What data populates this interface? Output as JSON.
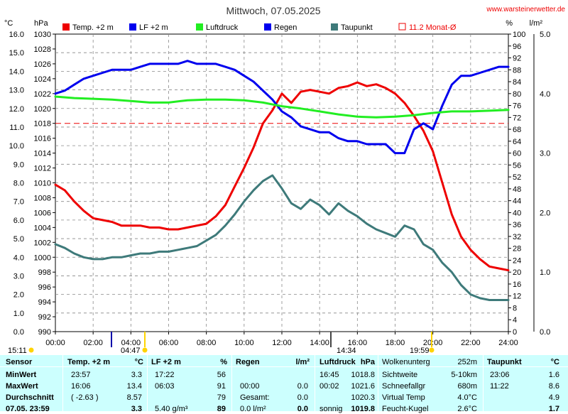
{
  "title": "Mittwoch, 07.05.2025",
  "site": "www.warsteinerwetter.de",
  "axis_units": {
    "temp": "°C",
    "pressure": "hPa",
    "humidity": "%",
    "rain": "l/m²"
  },
  "legend": [
    {
      "label": "Temp. +2 m",
      "color": "#ee0000",
      "style": "box"
    },
    {
      "label": "LF +2 m",
      "color": "#0000ee",
      "style": "box"
    },
    {
      "label": "Luftdruck",
      "color": "#22ee22",
      "style": "box"
    },
    {
      "label": "Regen",
      "color": "#0000ee",
      "style": "box"
    },
    {
      "label": "Taupunkt",
      "color": "#3e7a7a",
      "style": "box"
    },
    {
      "label": "11.2 Monat-Ø",
      "color": "#ee0000",
      "style": "outline"
    }
  ],
  "sun_events": {
    "sunrise": "04:47",
    "sunset": "19:59",
    "noon": "14:34",
    "left": "15:11"
  },
  "chart_data": {
    "type": "line",
    "x_range_hours": [
      0,
      24
    ],
    "x_ticks": [
      "00:00",
      "02:00",
      "04:00",
      "06:00",
      "08:00",
      "10:00",
      "12:00",
      "14:00",
      "16:00",
      "18:00",
      "20:00",
      "22:00",
      "24:00"
    ],
    "temp_ticks": [
      "0.0",
      "1.0",
      "2.0",
      "3.0",
      "4.0",
      "5.0",
      "6.0",
      "7.0",
      "8.0",
      "9.0",
      "10.0",
      "11.0",
      "12.0",
      "13.0",
      "14.0",
      "15.0",
      "16.0"
    ],
    "pressure_ticks": [
      "990",
      "992",
      "994",
      "996",
      "998",
      "1000",
      "1002",
      "1004",
      "1006",
      "1008",
      "1010",
      "1012",
      "1014",
      "1016",
      "1018",
      "1020",
      "1022",
      "1024",
      "1026",
      "1028",
      "1030"
    ],
    "humidity_ticks": [
      "0",
      "4",
      "8",
      "12",
      "16",
      "20",
      "24",
      "28",
      "32",
      "36",
      "40",
      "44",
      "48",
      "52",
      "56",
      "60",
      "64",
      "68",
      "72",
      "76",
      "80",
      "84",
      "88",
      "92",
      "96",
      "100"
    ],
    "rain_ticks": [
      "0.0",
      "1.0",
      "2.0",
      "3.0",
      "4.0",
      "5.0"
    ],
    "temp_range": [
      0,
      16
    ],
    "pressure_range": [
      990,
      1030
    ],
    "humidity_range": [
      0,
      100
    ],
    "rain_range": [
      0,
      5
    ],
    "monthly_average_temp": 11.2,
    "grid": true,
    "series": [
      {
        "name": "Temp. +2 m",
        "axis": "temp",
        "color": "#ee0000",
        "x": [
          0,
          0.5,
          1,
          1.5,
          2,
          2.5,
          3,
          3.5,
          4,
          4.5,
          5,
          5.5,
          6,
          6.5,
          7,
          7.5,
          8,
          8.5,
          9,
          9.5,
          10,
          10.5,
          11,
          11.5,
          12,
          12.5,
          13,
          13.5,
          14,
          14.5,
          15,
          15.5,
          16,
          16.5,
          17,
          17.5,
          18,
          18.5,
          19,
          19.5,
          20,
          20.5,
          21,
          21.5,
          22,
          22.5,
          23,
          23.5,
          24
        ],
        "y": [
          7.9,
          7.6,
          7.0,
          6.5,
          6.1,
          6.0,
          5.9,
          5.7,
          5.7,
          5.7,
          5.6,
          5.6,
          5.5,
          5.5,
          5.6,
          5.7,
          5.8,
          6.2,
          6.8,
          7.8,
          8.8,
          9.9,
          11.2,
          11.9,
          12.8,
          12.3,
          12.9,
          13.0,
          12.9,
          12.8,
          13.1,
          13.2,
          13.4,
          13.2,
          13.3,
          13.1,
          12.8,
          12.3,
          11.6,
          10.8,
          9.7,
          8.0,
          6.3,
          5.1,
          4.4,
          3.9,
          3.5,
          3.4,
          3.3
        ]
      },
      {
        "name": "LF +2 m",
        "axis": "humidity",
        "color": "#0000ee",
        "x": [
          0,
          0.5,
          1,
          1.5,
          2,
          2.5,
          3,
          3.5,
          4,
          4.5,
          5,
          5.5,
          6,
          6.5,
          7,
          7.5,
          8,
          8.5,
          9,
          9.5,
          10,
          10.5,
          11,
          11.5,
          12,
          12.5,
          13,
          13.5,
          14,
          14.5,
          15,
          15.5,
          16,
          16.5,
          17,
          17.5,
          18,
          18.5,
          19,
          19.5,
          20,
          20.5,
          21,
          21.5,
          22,
          22.5,
          23,
          23.5,
          24
        ],
        "y": [
          80,
          81,
          83,
          85,
          86,
          87,
          88,
          88,
          88,
          89,
          90,
          90,
          90,
          90,
          91,
          90,
          90,
          90,
          89,
          88,
          86,
          84,
          81,
          78,
          74,
          72,
          69,
          68,
          67,
          67,
          65,
          64,
          64,
          63,
          63,
          63,
          60,
          60,
          68,
          70,
          68,
          76,
          83,
          86,
          86,
          87,
          88,
          89,
          89
        ]
      },
      {
        "name": "Luftdruck",
        "axis": "pressure",
        "color": "#22ee22",
        "x": [
          0,
          1,
          2,
          3,
          4,
          5,
          6,
          7,
          8,
          9,
          10,
          11,
          12,
          13,
          14,
          15,
          16,
          17,
          18,
          19,
          20,
          21,
          22,
          23,
          24
        ],
        "y": [
          1021.6,
          1021.4,
          1021.3,
          1021.2,
          1021.0,
          1020.8,
          1020.8,
          1021.1,
          1021.2,
          1021.2,
          1021.1,
          1020.8,
          1020.3,
          1020.0,
          1019.6,
          1019.2,
          1018.9,
          1018.8,
          1018.9,
          1019.1,
          1019.4,
          1019.6,
          1019.6,
          1019.7,
          1019.8
        ]
      },
      {
        "name": "Taupunkt",
        "axis": "temp",
        "color": "#3e7a7a",
        "x": [
          0,
          0.5,
          1,
          1.5,
          2,
          2.5,
          3,
          3.5,
          4,
          4.5,
          5,
          5.5,
          6,
          6.5,
          7,
          7.5,
          8,
          8.5,
          9,
          9.5,
          10,
          10.5,
          11,
          11.5,
          12,
          12.5,
          13,
          13.5,
          14,
          14.5,
          15,
          15.5,
          16,
          16.5,
          17,
          17.5,
          18,
          18.5,
          19,
          19.5,
          20,
          20.5,
          21,
          21.5,
          22,
          22.5,
          23,
          23.5,
          24
        ],
        "y": [
          4.7,
          4.5,
          4.2,
          4.0,
          3.9,
          3.9,
          4.0,
          4.0,
          4.1,
          4.2,
          4.2,
          4.3,
          4.3,
          4.4,
          4.5,
          4.6,
          4.9,
          5.2,
          5.7,
          6.3,
          7.0,
          7.6,
          8.1,
          8.4,
          7.7,
          6.9,
          6.6,
          7.1,
          6.8,
          6.3,
          6.9,
          6.5,
          6.2,
          5.8,
          5.5,
          5.3,
          5.1,
          5.7,
          5.5,
          4.7,
          4.4,
          3.7,
          3.2,
          2.5,
          2.0,
          1.8,
          1.7,
          1.7,
          1.7
        ]
      }
    ]
  },
  "table": {
    "headers": {
      "sensor": "Sensor",
      "temp": "Temp. +2 m",
      "temp_unit": "°C",
      "lf": "LF +2 m",
      "lf_unit": "%",
      "regen": "Regen",
      "regen_unit": "l/m²",
      "luftdruck": "Luftdruck",
      "luftdruck_unit": "hPa",
      "extra_label": "Wolkenunterg",
      "extra_value": "252m",
      "taupunkt": "Taupunkt",
      "taupunkt_unit": "°C"
    },
    "rows": [
      {
        "label": "MinWert",
        "temp_time": "23:57",
        "temp_val": "3.3",
        "lf_time": "17:22",
        "lf_val": "56",
        "regen_time": "",
        "regen_val": "",
        "lp_time": "16:45",
        "lp_val": "1018.8",
        "ex_label": "Sichtweite",
        "ex_val": "5-10km",
        "tp_time": "23:06",
        "tp_val": "1.6"
      },
      {
        "label": "MaxWert",
        "temp_time": "16:06",
        "temp_val": "13.4",
        "lf_time": "06:03",
        "lf_val": "91",
        "regen_time": "00:00",
        "regen_val": "0.0",
        "lp_time": "00:02",
        "lp_val": "1021.6",
        "ex_label": "Schneefallgr",
        "ex_val": "680m",
        "tp_time": "11:22",
        "tp_val": "8.6"
      },
      {
        "label": "Durchschnitt",
        "temp_time": "( -2.63 )",
        "temp_val": "8.57",
        "lf_time": "",
        "lf_val": "79",
        "regen_time": "Gesamt:",
        "regen_val": "0.0",
        "lp_time": "",
        "lp_val": "1020.3",
        "ex_label": "Virtual Temp",
        "ex_val": "4.0°C",
        "tp_time": "",
        "tp_val": "4.9"
      },
      {
        "label": "07.05. 23:59",
        "temp_time": "",
        "temp_val": "3.3",
        "lf_time": "5.40 g/m³",
        "lf_val": "89",
        "regen_time": "0.0 l/m²",
        "regen_val": "0.0",
        "lp_time": "sonnig",
        "lp_val": "1019.8",
        "ex_label": "Feucht-Kugel",
        "ex_val": "2.6°C",
        "tp_time": "",
        "tp_val": "1.7"
      }
    ]
  }
}
